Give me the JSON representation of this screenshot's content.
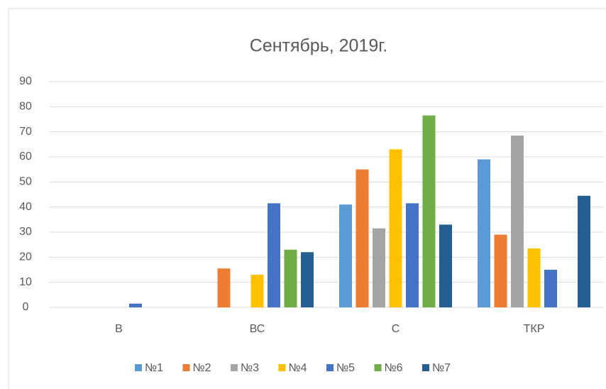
{
  "chart_data": {
    "type": "bar",
    "title": "Сентябрь, 2019г.",
    "categories": [
      "В",
      "ВС",
      "С",
      "ТКР"
    ],
    "series": [
      {
        "name": "№1",
        "color": "#5b9bd5",
        "values": [
          0,
          0,
          41,
          59
        ]
      },
      {
        "name": "№2",
        "color": "#ed7d31",
        "values": [
          0,
          15.5,
          55,
          29
        ]
      },
      {
        "name": "№3",
        "color": "#a5a5a5",
        "values": [
          0,
          0,
          31.5,
          68.5
        ]
      },
      {
        "name": "№4",
        "color": "#ffc000",
        "values": [
          0,
          13,
          63,
          23.5
        ]
      },
      {
        "name": "№5",
        "color": "#4472c4",
        "values": [
          1.5,
          41.5,
          41.5,
          15
        ]
      },
      {
        "name": "№6",
        "color": "#70ad47",
        "values": [
          0,
          23,
          76.5,
          0
        ]
      },
      {
        "name": "№7",
        "color": "#255e91",
        "values": [
          0,
          22,
          33,
          44.5
        ]
      }
    ],
    "ylim": [
      0,
      90
    ],
    "yticks": [
      0,
      10,
      20,
      30,
      40,
      50,
      60,
      70,
      80,
      90
    ],
    "grid": true,
    "legend": "bottom"
  }
}
